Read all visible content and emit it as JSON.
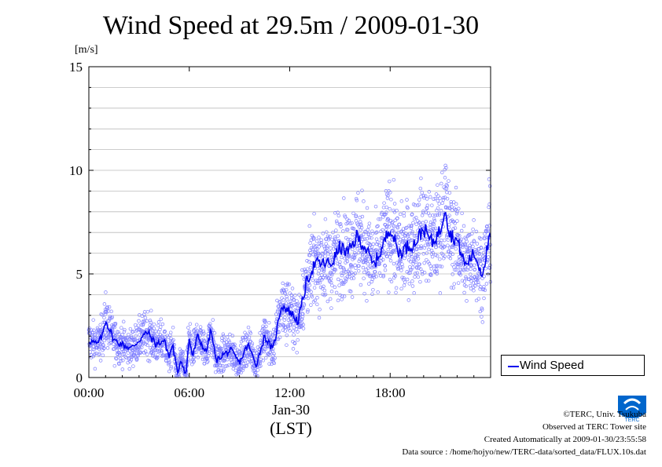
{
  "chart_data": {
    "type": "scatter",
    "title": "Wind Speed at 29.5m / 2009-01-30",
    "ylabel": "[m/s]",
    "xlabel": "(LST)",
    "date_label": "Jan-30",
    "ylim": [
      0,
      15
    ],
    "xlim_hours": [
      0,
      24
    ],
    "y_ticks": [
      "0",
      "5",
      "10",
      "15"
    ],
    "x_ticks": [
      {
        "hour": 0,
        "label": "00:00"
      },
      {
        "hour": 6,
        "label": "06:00"
      },
      {
        "hour": 12,
        "label": "12:00"
      },
      {
        "hour": 18,
        "label": "18:00"
      }
    ],
    "grid": true,
    "legend_position": "bottom-right outside",
    "series": [
      {
        "name": "Wind Speed",
        "line_color": "#0000ee",
        "marker_color": "#8080ff",
        "hours": [
          0,
          0.5,
          0.8,
          1.0,
          1.5,
          2.0,
          2.5,
          3.0,
          3.5,
          4.0,
          4.5,
          4.8,
          5.0,
          5.3,
          5.5,
          5.8,
          6.0,
          6.2,
          6.5,
          7.0,
          7.3,
          7.6,
          8.0,
          8.5,
          9.0,
          9.5,
          10.0,
          10.5,
          11.0,
          11.5,
          12.0,
          12.5,
          13.0,
          13.5,
          14.0,
          14.5,
          15.0,
          15.5,
          16.0,
          16.5,
          17.0,
          17.5,
          18.0,
          18.5,
          19.0,
          19.5,
          20.0,
          20.5,
          21.0,
          21.3,
          21.5,
          22.0,
          22.5,
          23.0,
          23.5,
          23.9
        ],
        "values": [
          1.8,
          1.6,
          2.0,
          2.8,
          1.8,
          1.6,
          1.4,
          1.8,
          2.2,
          1.6,
          1.8,
          1.0,
          1.6,
          0.2,
          0.9,
          0.1,
          1.9,
          1.0,
          2.0,
          1.2,
          2.3,
          0.8,
          1.1,
          1.3,
          0.7,
          1.6,
          0.6,
          2.0,
          1.3,
          3.5,
          3.2,
          2.7,
          4.6,
          5.5,
          5.5,
          5.5,
          6.3,
          6.0,
          6.8,
          6.3,
          5.4,
          6.2,
          7.3,
          6.0,
          6.3,
          6.5,
          7.2,
          6.5,
          7.1,
          8.4,
          7.0,
          6.6,
          5.4,
          6.0,
          5.0,
          6.6
        ]
      }
    ]
  },
  "credits": {
    "copyright": "©TERC, Univ. Tsukuba",
    "observed": "Observed at TERC Tower site",
    "created": "Created Automatically at 2009-01-30/23:55:58",
    "source": "Data source : /home/hojyo/new/TERC-data/sorted_data/FLUX.10s.dat"
  },
  "logo": {
    "name": "terc-logo",
    "color": "#0066cc",
    "text": "TERC"
  }
}
